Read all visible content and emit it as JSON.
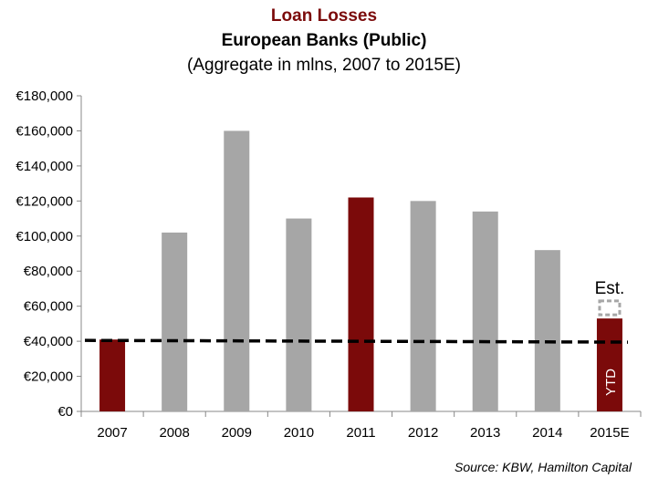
{
  "chart_data": {
    "type": "bar",
    "title": "Loan Losses",
    "subtitle": "European Banks (Public)",
    "subtitle2": "(Aggregate in mlns, 2007 to 2015E)",
    "categories": [
      "2007",
      "2008",
      "2009",
      "2010",
      "2011",
      "2012",
      "2013",
      "2014",
      "2015E"
    ],
    "values": [
      41000,
      102000,
      160000,
      110000,
      122000,
      120000,
      114000,
      92000,
      53000
    ],
    "estimate": {
      "category": "2015E",
      "value": 63000,
      "label": "Est."
    },
    "bar_annotation": {
      "category": "2015E",
      "label": "YTD"
    },
    "reference_line": {
      "value": 40500,
      "end_value": 39500,
      "style": "dashed"
    },
    "highlighted": [
      "2007",
      "2011",
      "2015E"
    ],
    "ylim": [
      0,
      180000
    ],
    "yticks": [
      0,
      20000,
      40000,
      60000,
      80000,
      100000,
      120000,
      140000,
      160000,
      180000
    ],
    "ytick_labels": [
      "€0",
      "€20,000",
      "€40,000",
      "€60,000",
      "€80,000",
      "€100,000",
      "€120,000",
      "€140,000",
      "€160,000",
      "€180,000"
    ],
    "grid": false,
    "colors": {
      "highlight": "#7b0a0a",
      "normal": "#a6a6a6",
      "reference": "#000000",
      "estimate": "#a6a6a6"
    },
    "source": "Source: KBW, Hamilton Capital"
  }
}
